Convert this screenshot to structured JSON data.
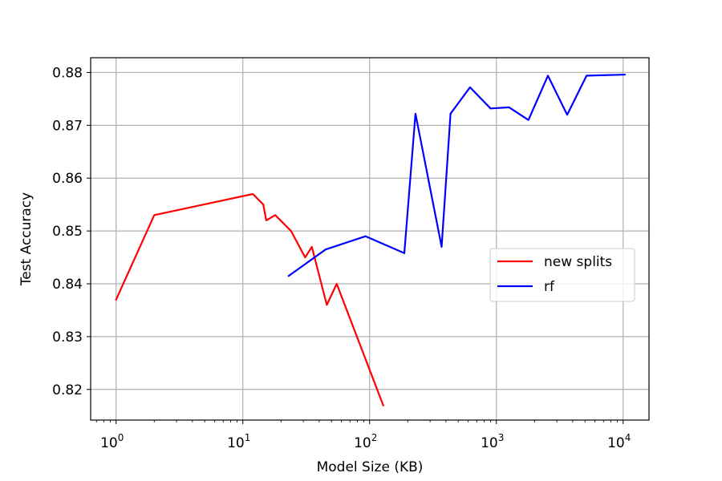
{
  "chart_data": {
    "type": "line",
    "title": "",
    "xlabel": "Model Size (KB)",
    "ylabel": "Test Accuracy",
    "xscale": "log",
    "xlim": [
      0.63,
      16000
    ],
    "ylim": [
      0.8142,
      0.8828
    ],
    "xticks": [
      {
        "value": 1,
        "base": "10",
        "exp": "0"
      },
      {
        "value": 10,
        "base": "10",
        "exp": "1"
      },
      {
        "value": 100,
        "base": "10",
        "exp": "2"
      },
      {
        "value": 1000,
        "base": "10",
        "exp": "3"
      },
      {
        "value": 10000,
        "base": "10",
        "exp": "4"
      }
    ],
    "yticks": [
      {
        "value": 0.82,
        "label": "0.82"
      },
      {
        "value": 0.83,
        "label": "0.83"
      },
      {
        "value": 0.84,
        "label": "0.84"
      },
      {
        "value": 0.85,
        "label": "0.85"
      },
      {
        "value": 0.86,
        "label": "0.86"
      },
      {
        "value": 0.87,
        "label": "0.87"
      },
      {
        "value": 0.88,
        "label": "0.88"
      }
    ],
    "grid": true,
    "legend_position": "center-right",
    "series": [
      {
        "name": "new splits",
        "color": "#ff0000",
        "x": [
          1,
          2,
          12,
          14.5,
          15.3,
          18,
          24,
          31,
          35,
          46,
          55,
          128
        ],
        "y": [
          0.837,
          0.853,
          0.857,
          0.855,
          0.852,
          0.853,
          0.85,
          0.845,
          0.847,
          0.836,
          0.84,
          0.817
        ]
      },
      {
        "name": "rf",
        "color": "#0000ff",
        "x": [
          23,
          45,
          93,
          188,
          230,
          370,
          435,
          620,
          900,
          1260,
          1790,
          2550,
          3620,
          5150,
          10300
        ],
        "y": [
          0.8415,
          0.8465,
          0.849,
          0.8458,
          0.8722,
          0.847,
          0.8722,
          0.8772,
          0.8732,
          0.8734,
          0.871,
          0.8794,
          0.872,
          0.8794,
          0.8796
        ]
      }
    ]
  }
}
